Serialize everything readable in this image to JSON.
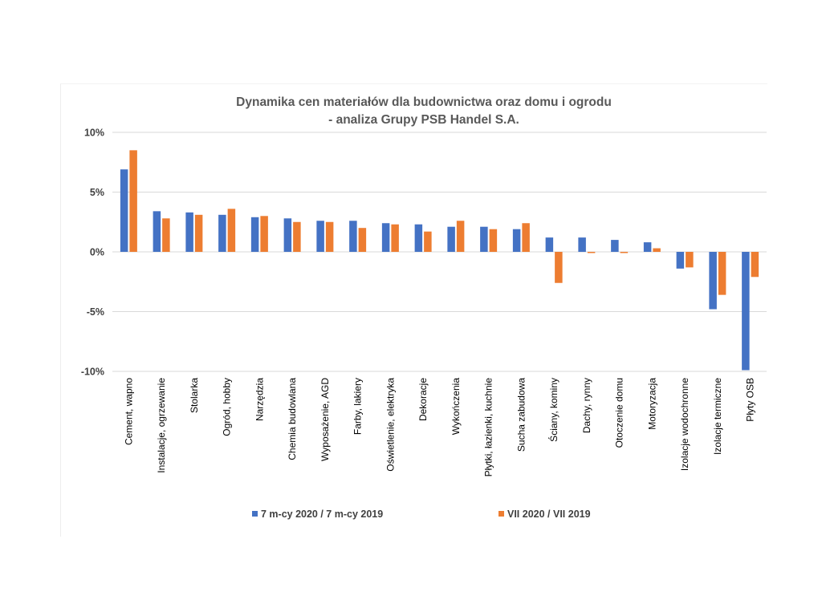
{
  "chart_data": {
    "type": "bar",
    "title": [
      "Dynamika cen materiałów dla budownictwa oraz domu i ogrodu",
      "- analiza Grupy PSB Handel S.A."
    ],
    "categories": [
      "Cement, wapno",
      "Instalacje, ogrzewanie",
      "Stolarka",
      "Ogród, hobby",
      "Narzędzia",
      "Chemia budowlana",
      "Wyposażenie, AGD",
      "Farby, lakiery",
      "Oświetlenie, elektryka",
      "Dekoracje",
      "Wykończenia",
      "Płytki, łazienki, kuchnie",
      "Sucha zabudowa",
      "Ściany, kominy",
      "Dachy, rynny",
      "Otoczenie domu",
      "Motoryzacja",
      "Izolacje wodochronne",
      "Izolacje termiczne",
      "Płyty OSB"
    ],
    "series": [
      {
        "name": "7 m-cy 2020 / 7 m-cy 2019",
        "color": "#4472c4",
        "values": [
          6.9,
          3.4,
          3.3,
          3.1,
          2.9,
          2.8,
          2.6,
          2.6,
          2.4,
          2.3,
          2.1,
          2.1,
          1.9,
          1.2,
          1.2,
          1.0,
          0.8,
          -1.4,
          -4.8,
          -9.9
        ]
      },
      {
        "name": "VII 2020 / VII 2019",
        "color": "#ed7d31",
        "values": [
          8.5,
          2.8,
          3.1,
          3.6,
          3.0,
          2.5,
          2.5,
          2.0,
          2.3,
          1.7,
          2.6,
          1.9,
          2.4,
          -2.6,
          -0.1,
          -0.1,
          0.3,
          -1.3,
          -3.6,
          -2.1
        ]
      }
    ],
    "ylim": [
      -10,
      10
    ],
    "yticks": [
      10,
      5,
      0,
      -5,
      -10
    ],
    "ytick_labels": [
      "10%",
      "5%",
      "0%",
      "-5%",
      "-10%"
    ],
    "grid": true,
    "legend": "bottom"
  }
}
